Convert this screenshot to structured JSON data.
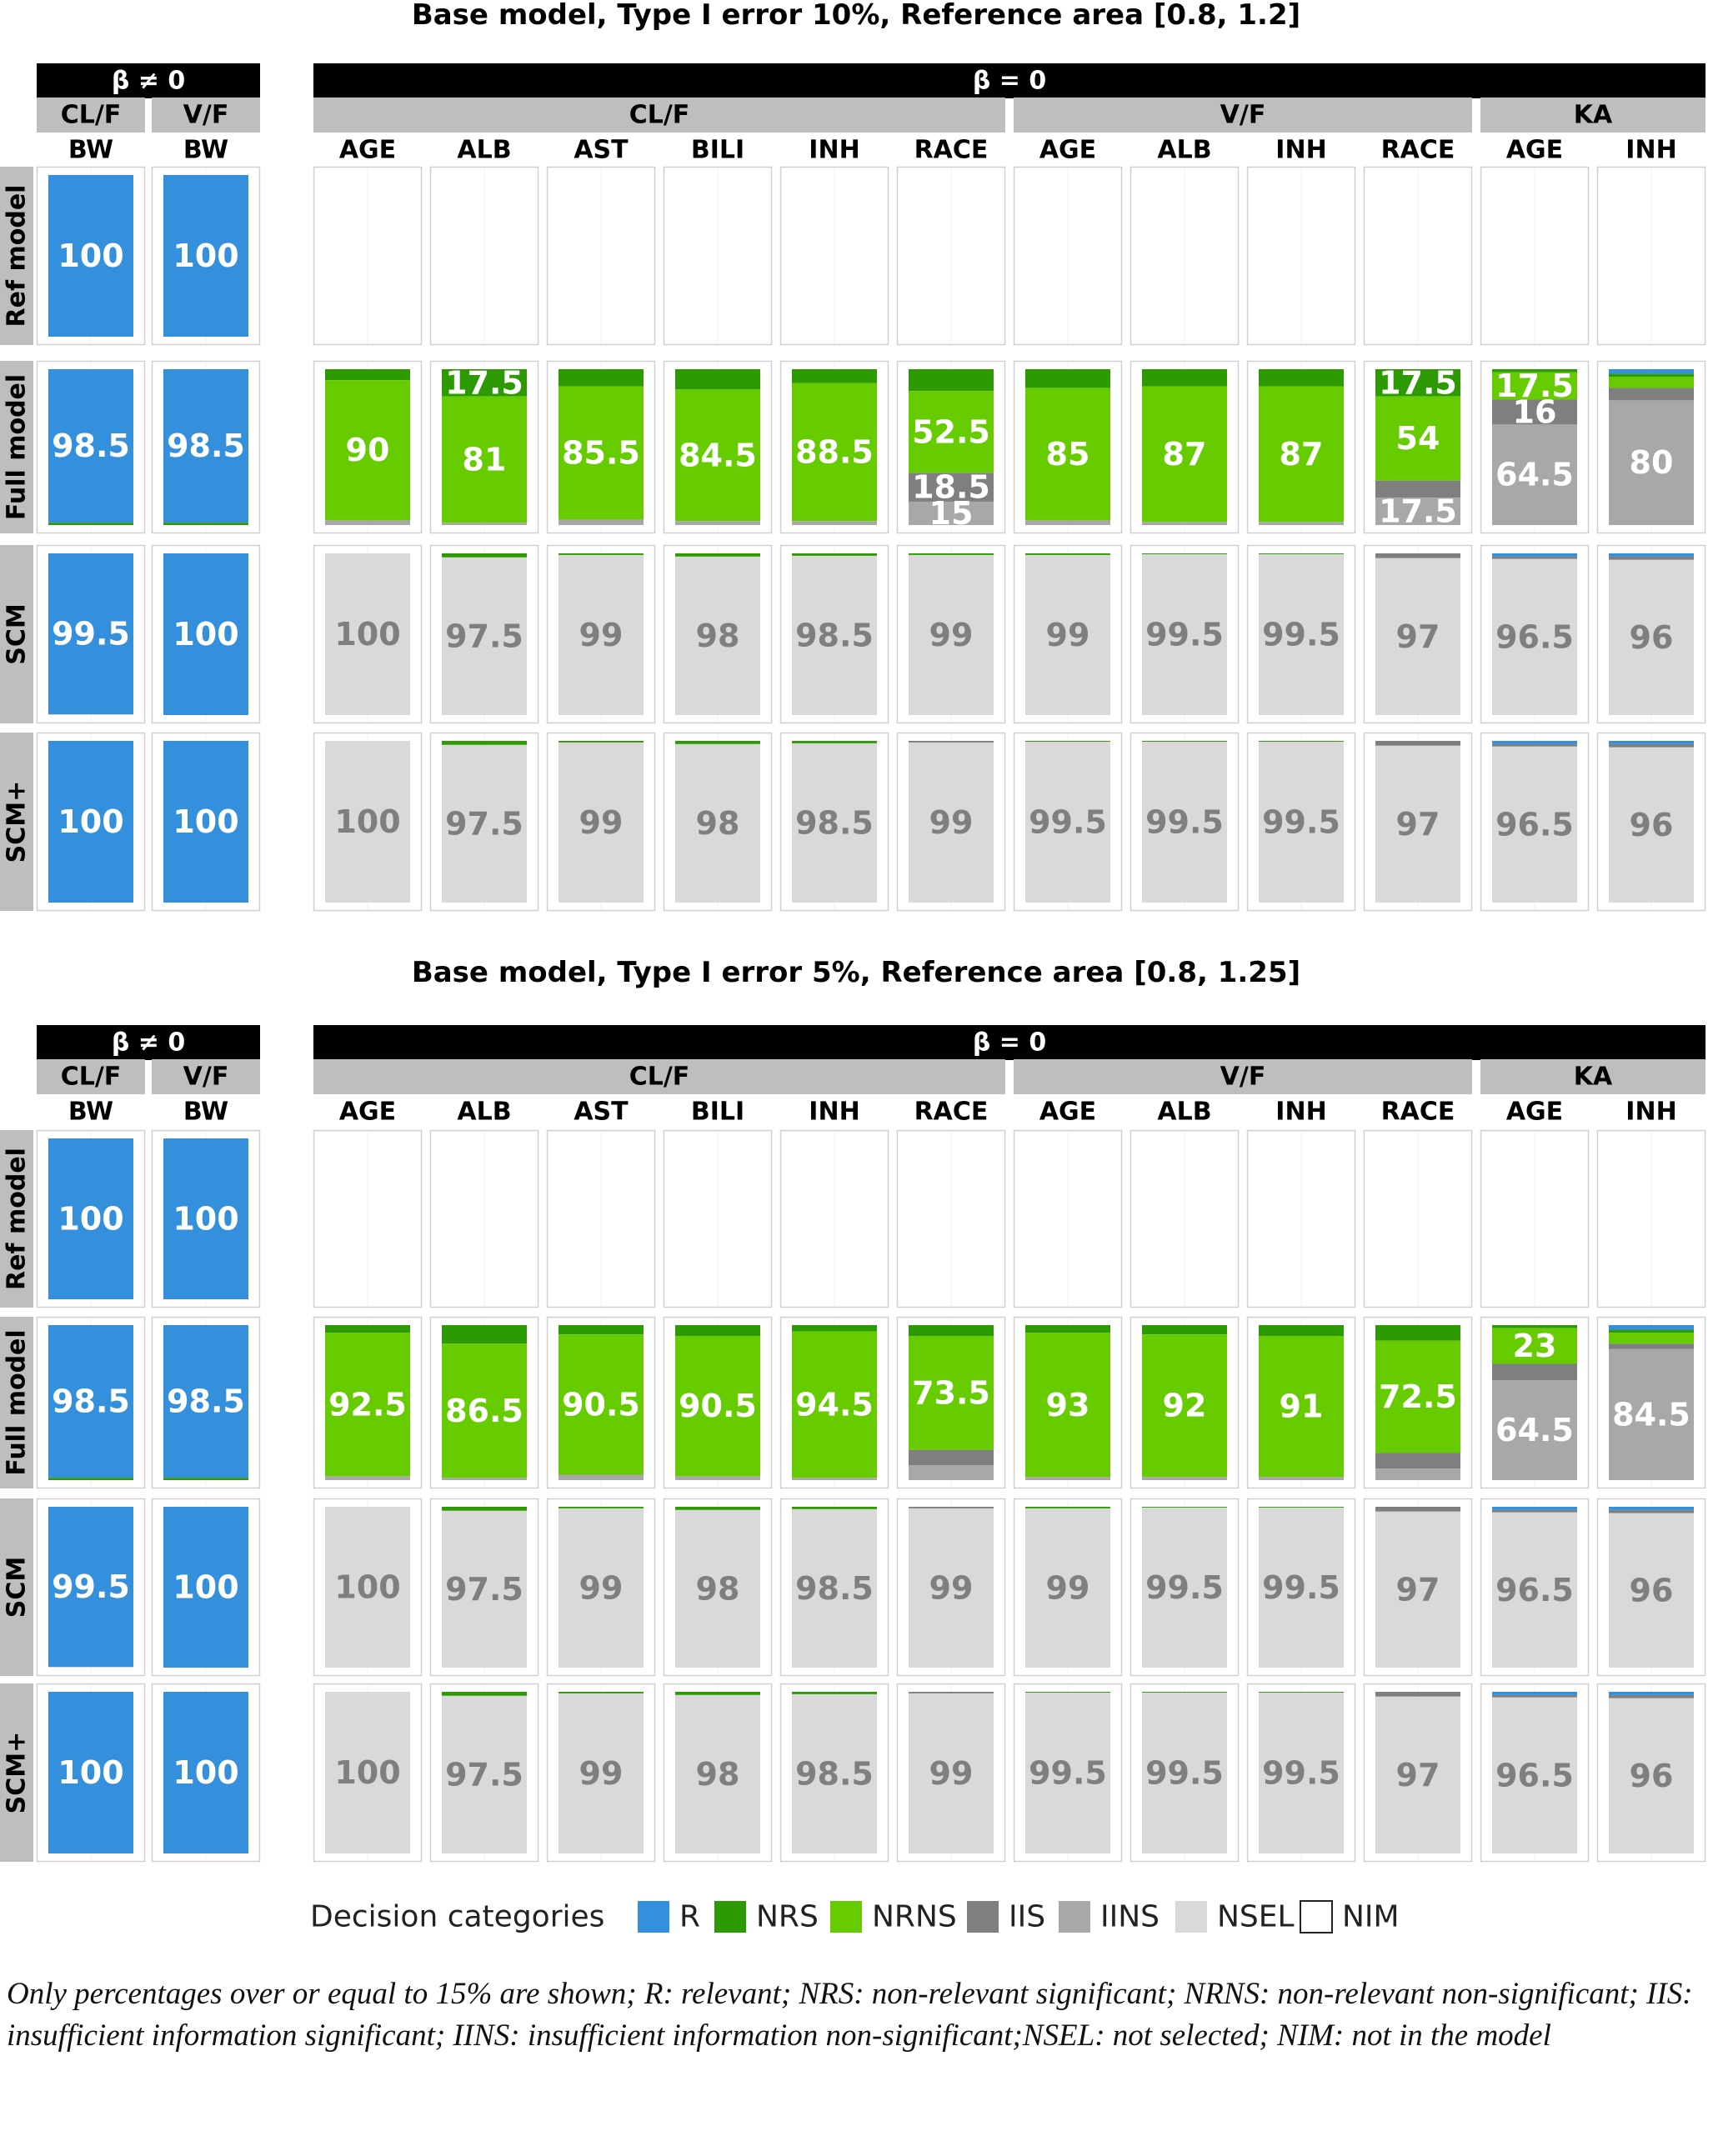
{
  "colors": {
    "R": "#3490dc",
    "NRS": "#2e9a03",
    "NRNS": "#66cc00",
    "IIS": "#7f7f7f",
    "IINS": "#a8a8a8",
    "NSEL": "#d9d9d9",
    "NIM": "#ffffff"
  },
  "legend": {
    "title": "Decision categories",
    "items": [
      {
        "key": "R",
        "label": "R"
      },
      {
        "key": "NRS",
        "label": "NRS"
      },
      {
        "key": "NRNS",
        "label": "NRNS"
      },
      {
        "key": "IIS",
        "label": "IIS"
      },
      {
        "key": "IINS",
        "label": "IINS"
      },
      {
        "key": "NSEL",
        "label": "NSEL"
      },
      {
        "key": "NIM",
        "label": "NIM"
      }
    ]
  },
  "caption": "Only percentages over or equal to 15% are shown; R: relevant; NRS: non-relevant significant; NRNS: non-relevant non-significant; IIS: insufficient information significant; IINS: insufficient information non-significant;NSEL: not selected; NIM: not in the model",
  "chart_data": [
    {
      "type": "bar",
      "stacked": true,
      "title": "Base model, Type I error 10%, Reference area [0.8, 1.2]",
      "ylim": [
        0,
        100
      ],
      "groups": [
        {
          "label": "β ≠ 0",
          "parameters": [
            {
              "label": "CL/F",
              "covariates": [
                "BW"
              ]
            },
            {
              "label": "V/F",
              "covariates": [
                "BW"
              ]
            }
          ]
        },
        {
          "label": "β = 0",
          "parameters": [
            {
              "label": "CL/F",
              "covariates": [
                "AGE",
                "ALB",
                "AST",
                "BILI",
                "INH",
                "RACE"
              ]
            },
            {
              "label": "V/F",
              "covariates": [
                "AGE",
                "ALB",
                "INH",
                "RACE"
              ]
            },
            {
              "label": "KA",
              "covariates": [
                "AGE",
                "INH"
              ]
            }
          ]
        }
      ],
      "rows": [
        "Ref model",
        "Full model",
        "SCM",
        "SCM+"
      ],
      "stack_order": [
        "R",
        "NRS",
        "NRNS",
        "IIS",
        "IINS",
        "NSEL",
        "NIM"
      ],
      "cells": [
        [
          {
            "R": 100
          },
          {
            "R": 100
          },
          {
            "NIM": 100
          },
          {
            "NIM": 100
          },
          {
            "NIM": 100
          },
          {
            "NIM": 100
          },
          {
            "NIM": 100
          },
          {
            "NIM": 100
          },
          {
            "NIM": 100
          },
          {
            "NIM": 100
          },
          {
            "NIM": 100
          },
          {
            "NIM": 100
          },
          {
            "NIM": 100
          },
          {
            "NIM": 100
          }
        ],
        [
          {
            "R": 98.5,
            "NRS": 1.5
          },
          {
            "R": 98.5,
            "NRS": 1.5
          },
          {
            "NRS": 7,
            "NRNS": 90,
            "IINS": 3
          },
          {
            "NRS": 17.5,
            "NRNS": 81,
            "IINS": 1.5
          },
          {
            "NRS": 11,
            "NRNS": 85.5,
            "IINS": 3.5
          },
          {
            "NRS": 13,
            "NRNS": 84.5,
            "IINS": 2.5
          },
          {
            "NRS": 9,
            "NRNS": 88.5,
            "IINS": 2.5
          },
          {
            "NRS": 14,
            "NRNS": 52.5,
            "IIS": 18.5,
            "IINS": 15
          },
          {
            "NRS": 12,
            "NRNS": 85,
            "IINS": 3
          },
          {
            "NRS": 11,
            "NRNS": 87,
            "IINS": 2
          },
          {
            "NRS": 11,
            "NRNS": 87,
            "IINS": 2
          },
          {
            "NRS": 17.5,
            "NRNS": 54,
            "IIS": 11,
            "IINS": 17.5
          },
          {
            "NRNS": 17.5,
            "IIS": 16,
            "IINS": 64.5,
            "NRS": 2
          },
          {
            "R": 3,
            "NRS": 2,
            "NRNS": 7,
            "IIS": 8,
            "IINS": 80
          }
        ],
        [
          {
            "R": 99.5,
            "NSEL": 0.5
          },
          {
            "R": 100
          },
          {
            "NSEL": 100
          },
          {
            "NRS": 2.5,
            "NSEL": 97.5
          },
          {
            "NRS": 1,
            "NSEL": 99
          },
          {
            "NRS": 2,
            "NSEL": 98
          },
          {
            "NRS": 1.5,
            "NSEL": 98.5
          },
          {
            "NRS": 1,
            "NSEL": 99
          },
          {
            "NRS": 1,
            "NSEL": 99
          },
          {
            "NRS": 0.5,
            "NSEL": 99.5
          },
          {
            "NRS": 0.5,
            "NSEL": 99.5
          },
          {
            "IIS": 3,
            "NSEL": 97
          },
          {
            "R": 2,
            "IIS": 1.5,
            "NSEL": 96.5
          },
          {
            "R": 2,
            "IIS": 2,
            "NSEL": 96
          }
        ],
        [
          {
            "R": 100
          },
          {
            "R": 100
          },
          {
            "NSEL": 100
          },
          {
            "NRS": 2.5,
            "NSEL": 97.5
          },
          {
            "NRS": 1,
            "NSEL": 99
          },
          {
            "NRS": 2,
            "NSEL": 98
          },
          {
            "NRS": 1.5,
            "NSEL": 98.5
          },
          {
            "IIS": 1,
            "NSEL": 99
          },
          {
            "NRS": 0.5,
            "NSEL": 99.5
          },
          {
            "NRS": 0.5,
            "NSEL": 99.5
          },
          {
            "NRS": 0.5,
            "NSEL": 99.5
          },
          {
            "IIS": 3,
            "NSEL": 97
          },
          {
            "R": 2,
            "IIS": 1.5,
            "NSEL": 96.5
          },
          {
            "R": 2,
            "IIS": 2,
            "NSEL": 96
          }
        ]
      ]
    },
    {
      "type": "bar",
      "stacked": true,
      "title": "Base model, Type I error 5%, Reference area [0.8, 1.25]",
      "ylim": [
        0,
        100
      ],
      "groups": [
        {
          "label": "β ≠ 0",
          "parameters": [
            {
              "label": "CL/F",
              "covariates": [
                "BW"
              ]
            },
            {
              "label": "V/F",
              "covariates": [
                "BW"
              ]
            }
          ]
        },
        {
          "label": "β = 0",
          "parameters": [
            {
              "label": "CL/F",
              "covariates": [
                "AGE",
                "ALB",
                "AST",
                "BILI",
                "INH",
                "RACE"
              ]
            },
            {
              "label": "V/F",
              "covariates": [
                "AGE",
                "ALB",
                "INH",
                "RACE"
              ]
            },
            {
              "label": "KA",
              "covariates": [
                "AGE",
                "INH"
              ]
            }
          ]
        }
      ],
      "rows": [
        "Ref model",
        "Full model",
        "SCM",
        "SCM+"
      ],
      "stack_order": [
        "R",
        "NRS",
        "NRNS",
        "IIS",
        "IINS",
        "NSEL",
        "NIM"
      ],
      "cells": [
        [
          {
            "R": 100
          },
          {
            "R": 100
          },
          {
            "NIM": 100
          },
          {
            "NIM": 100
          },
          {
            "NIM": 100
          },
          {
            "NIM": 100
          },
          {
            "NIM": 100
          },
          {
            "NIM": 100
          },
          {
            "NIM": 100
          },
          {
            "NIM": 100
          },
          {
            "NIM": 100
          },
          {
            "NIM": 100
          },
          {
            "NIM": 100
          },
          {
            "NIM": 100
          }
        ],
        [
          {
            "R": 98.5,
            "NRS": 1.5
          },
          {
            "R": 98.5,
            "NRS": 1.5
          },
          {
            "NRS": 5,
            "NRNS": 92.5,
            "IINS": 2.5
          },
          {
            "NRS": 12,
            "NRNS": 86.5,
            "IINS": 1.5
          },
          {
            "NRS": 6,
            "NRNS": 90.5,
            "IINS": 3.5
          },
          {
            "NRS": 7,
            "NRNS": 90.5,
            "IINS": 2.5
          },
          {
            "NRS": 4,
            "NRNS": 94.5,
            "IINS": 1.5
          },
          {
            "NRS": 7,
            "NRNS": 73.5,
            "IIS": 10,
            "IINS": 9.5
          },
          {
            "NRS": 5,
            "NRNS": 93,
            "IINS": 2
          },
          {
            "NRS": 6,
            "NRNS": 92,
            "IINS": 2
          },
          {
            "NRS": 7,
            "NRNS": 91,
            "IINS": 2
          },
          {
            "NRS": 10,
            "NRNS": 72.5,
            "IIS": 10,
            "IINS": 7.5
          },
          {
            "NRNS": 23,
            "IIS": 10.5,
            "IINS": 64.5,
            "NRS": 2
          },
          {
            "R": 3,
            "NRS": 2,
            "NRNS": 7,
            "IIS": 3.5,
            "IINS": 84.5
          }
        ],
        [
          {
            "R": 99.5,
            "NSEL": 0.5
          },
          {
            "R": 100
          },
          {
            "NSEL": 100
          },
          {
            "NRS": 2.5,
            "NSEL": 97.5
          },
          {
            "NRS": 1,
            "NSEL": 99
          },
          {
            "NRS": 2,
            "NSEL": 98
          },
          {
            "NRS": 1.5,
            "NSEL": 98.5
          },
          {
            "IIS": 1,
            "NSEL": 99
          },
          {
            "NRS": 1,
            "NSEL": 99
          },
          {
            "NRS": 0.5,
            "NSEL": 99.5
          },
          {
            "NRS": 0.5,
            "NSEL": 99.5
          },
          {
            "IIS": 3,
            "NSEL": 97
          },
          {
            "R": 2,
            "IIS": 1.5,
            "NSEL": 96.5
          },
          {
            "R": 2,
            "IIS": 2,
            "NSEL": 96
          }
        ],
        [
          {
            "R": 100
          },
          {
            "R": 100
          },
          {
            "NSEL": 100
          },
          {
            "NRS": 2.5,
            "NSEL": 97.5
          },
          {
            "NRS": 1,
            "NSEL": 99
          },
          {
            "NRS": 2,
            "NSEL": 98
          },
          {
            "NRS": 1.5,
            "NSEL": 98.5
          },
          {
            "IIS": 1,
            "NSEL": 99
          },
          {
            "NRS": 0.5,
            "NSEL": 99.5
          },
          {
            "NRS": 0.5,
            "NSEL": 99.5
          },
          {
            "NRS": 0.5,
            "NSEL": 99.5
          },
          {
            "IIS": 3,
            "NSEL": 97
          },
          {
            "R": 2,
            "IIS": 1.5,
            "NSEL": 96.5
          },
          {
            "R": 2,
            "IIS": 2,
            "NSEL": 96
          }
        ]
      ]
    }
  ]
}
